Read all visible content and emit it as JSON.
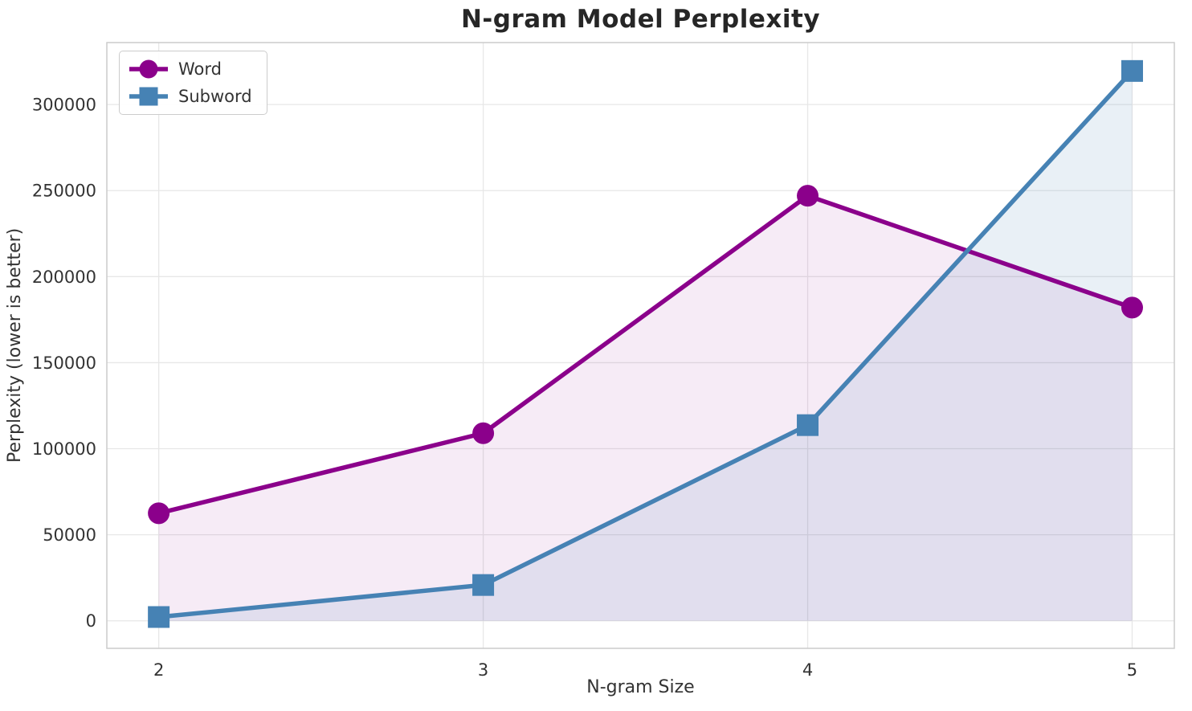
{
  "chart_data": {
    "type": "line",
    "title": "N-gram Model Perplexity",
    "xlabel": "N-gram Size",
    "ylabel": "Perplexity (lower is better)",
    "x": [
      2,
      3,
      4,
      5
    ],
    "series": [
      {
        "name": "Word",
        "color": "#8b008b",
        "marker": "circle",
        "fill_alpha": 0.08,
        "values": [
          62500,
          109000,
          247000,
          182000
        ]
      },
      {
        "name": "Subword",
        "color": "#4682b4",
        "marker": "square",
        "fill_alpha": 0.12,
        "values": [
          2200,
          20800,
          113700,
          319500
        ]
      }
    ],
    "xticks": [
      2,
      3,
      4,
      5
    ],
    "yticks": [
      0,
      50000,
      100000,
      150000,
      200000,
      250000,
      300000
    ],
    "xlim": [
      1.84,
      5.13
    ],
    "ylim": [
      -16000,
      336000
    ],
    "grid": true,
    "fill_to_zero": true,
    "legend_position": "upper left"
  },
  "style": {
    "background": "#ffffff",
    "grid_color": "#e7e7e7",
    "spine_color": "#cccccc",
    "tick_color": "#333333",
    "title_color": "#262626"
  }
}
